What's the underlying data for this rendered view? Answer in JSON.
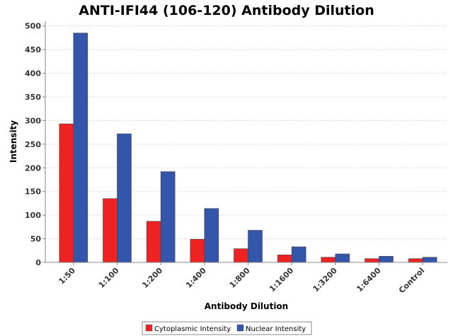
{
  "chart_data": {
    "type": "bar",
    "title": "ANTI-IFI44 (106-120) Antibody Dilution",
    "xlabel": "Antibody Dilution",
    "ylabel": "Intensity",
    "ylim": [
      0,
      510
    ],
    "yticks": [
      0,
      50,
      100,
      150,
      200,
      250,
      300,
      350,
      400,
      450,
      500
    ],
    "grid": true,
    "legend_position": "bottom-center",
    "categories": [
      "1:50",
      "1:100",
      "1:200",
      "1:400",
      "1:800",
      "1:1600",
      "1:3200",
      "1:6400",
      "Control"
    ],
    "series": [
      {
        "name": "Cytoplasmic Intensity",
        "color": "#ee2222",
        "values": [
          293,
          135,
          87,
          49,
          29,
          16,
          11,
          8,
          8
        ]
      },
      {
        "name": "Nuclear Intensity",
        "color": "#3355aa",
        "values": [
          485,
          272,
          192,
          114,
          68,
          33,
          18,
          13,
          11
        ]
      }
    ]
  }
}
